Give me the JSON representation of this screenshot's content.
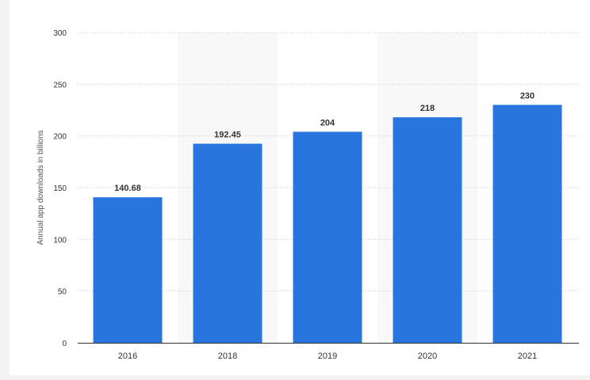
{
  "chart_data": {
    "type": "bar",
    "categories": [
      "2016",
      "2018",
      "2019",
      "2020",
      "2021"
    ],
    "values": [
      140.68,
      192.45,
      204,
      218,
      230
    ],
    "value_labels": [
      "140.68",
      "192.45",
      "204",
      "218",
      "230"
    ],
    "title": "",
    "xlabel": "",
    "ylabel": "Annual app downloads in billions",
    "ylim": [
      0,
      300
    ],
    "yticks": [
      0,
      50,
      100,
      150,
      200,
      250,
      300
    ],
    "grid": true,
    "bar_color": "#2876dd",
    "band_color": "#f8f8f8"
  }
}
